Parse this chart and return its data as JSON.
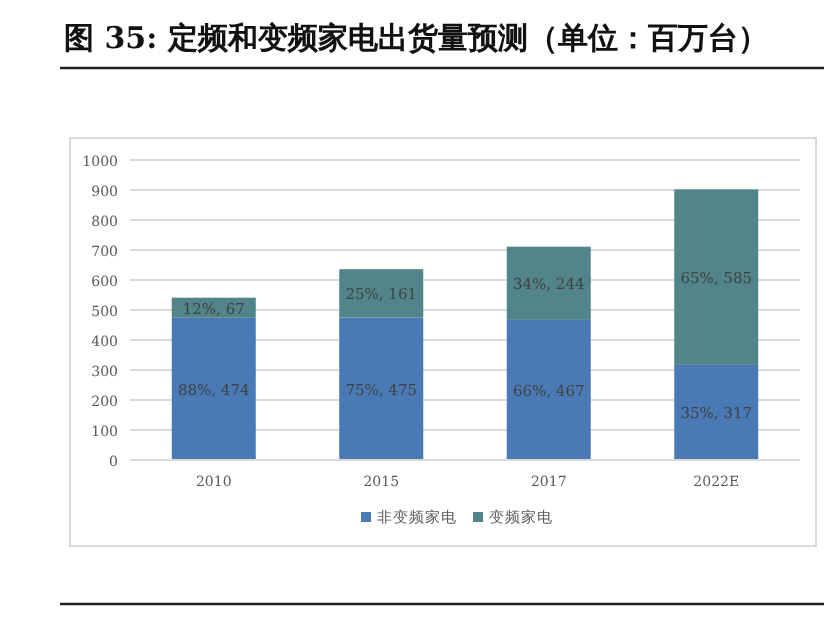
{
  "chart_data": {
    "type": "bar",
    "title": "图 35: 定频和变频家电出货量预测（单位：百万台）",
    "categories": [
      "2010",
      "2015",
      "2017",
      "2022E"
    ],
    "stacked": true,
    "series": [
      {
        "name": "非变频家电",
        "color": "#4a7ab5",
        "values": [
          474,
          475,
          467,
          317
        ],
        "value_labels": [
          "88%, 474",
          "75%, 475",
          "66%, 467",
          "35%, 317"
        ]
      },
      {
        "name": "变频家电",
        "color": "#52858a",
        "values": [
          67,
          161,
          244,
          585
        ],
        "value_labels": [
          "12%, 67",
          "25%, 161",
          "34%, 244",
          "65%, 585"
        ]
      }
    ],
    "ylim": [
      0,
      1000
    ],
    "yticks": [
      0,
      100,
      200,
      300,
      400,
      500,
      600,
      700,
      800,
      900,
      1000
    ],
    "grid": "y",
    "legend": "bottom"
  }
}
